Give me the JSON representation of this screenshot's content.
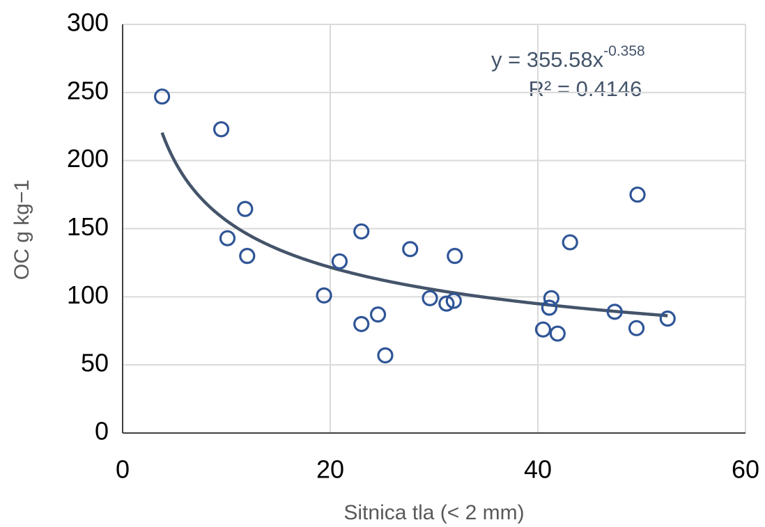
{
  "chart_data": {
    "type": "scatter",
    "x_label": "Sitnica tla (< 2 mm)",
    "y_label": "OC g kg−1",
    "x": [
      3.8,
      9.5,
      11.8,
      10.1,
      12.0,
      19.4,
      20.9,
      23.0,
      23.0,
      24.6,
      25.3,
      27.7,
      29.6,
      31.2,
      31.9,
      32.0,
      40.5,
      41.3,
      41.1,
      41.9,
      43.1,
      47.4,
      49.5,
      49.6,
      52.5
    ],
    "values": [
      247,
      223,
      164.5,
      143,
      130,
      101,
      126,
      148,
      80,
      87,
      57,
      135,
      99,
      95,
      97,
      130,
      76,
      99,
      92,
      73,
      140,
      89,
      77,
      175,
      84
    ],
    "color": "#2f5597",
    "trendline": {
      "a": 355.58,
      "b": -0.358,
      "color": "#44546a",
      "equation": "y = 355.58x",
      "equation_exponent": "-0.358",
      "r_squared": "R² = 0.4146"
    },
    "xlim": [
      0,
      60
    ],
    "xticks": [
      0,
      20,
      40,
      60
    ],
    "ylim": [
      0,
      300
    ],
    "yticks": [
      0,
      50,
      100,
      150,
      200,
      250,
      300
    ],
    "grid": true
  }
}
